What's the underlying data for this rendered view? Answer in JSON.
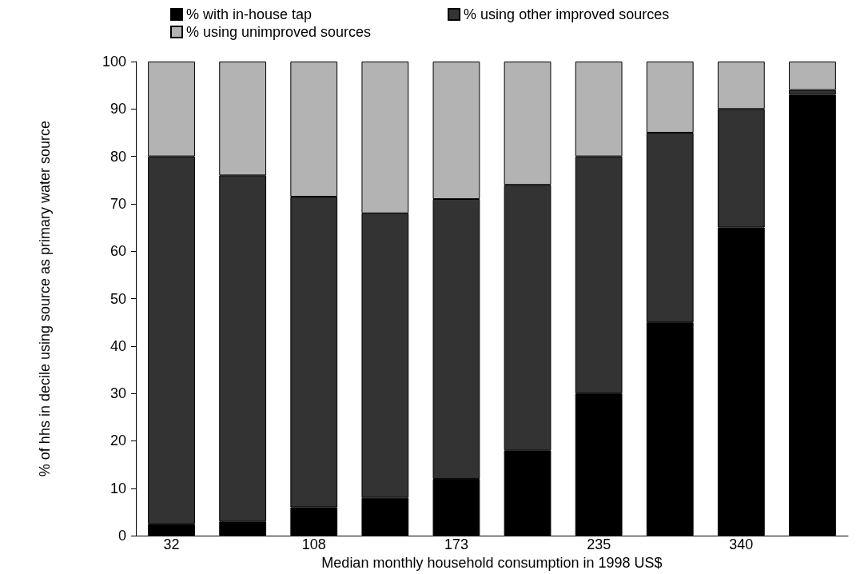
{
  "chart_data": {
    "type": "bar",
    "stacked": true,
    "xlabel": "Median monthly household consumption in 1998 US$",
    "ylabel": "% of hhs in decile using source as primary water source",
    "categories": [
      "32",
      null,
      "108",
      null,
      "173",
      null,
      "235",
      null,
      "340",
      null
    ],
    "series": [
      {
        "name": "% with in-house tap",
        "color": "#000000",
        "values": [
          2.5,
          3,
          6,
          8,
          12,
          18,
          30,
          45,
          65,
          93
        ]
      },
      {
        "name": "% using other improved sources",
        "color": "#333333",
        "values": [
          77.5,
          73,
          65.5,
          60,
          59,
          56,
          50,
          40,
          25,
          1
        ]
      },
      {
        "name": "% using unimproved sources",
        "color": "#b3b3b3",
        "values": [
          20,
          24,
          28.5,
          32,
          29,
          26,
          20,
          15,
          10,
          6
        ]
      }
    ],
    "ylim": [
      0,
      100
    ],
    "yticks": [
      0,
      10,
      20,
      30,
      40,
      50,
      60,
      70,
      80,
      90,
      100
    ],
    "grid": false,
    "legend": "top"
  }
}
